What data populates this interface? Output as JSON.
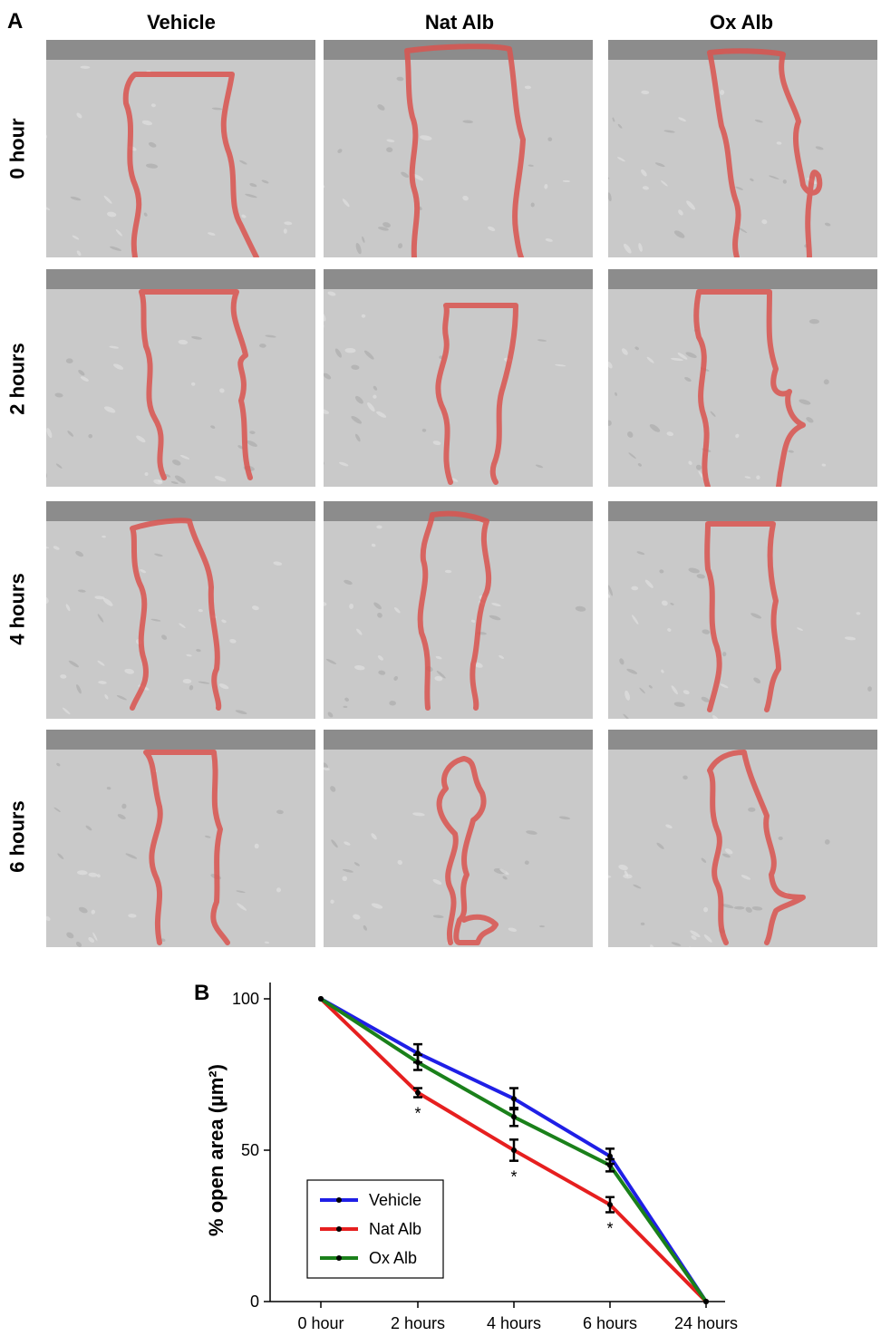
{
  "panel_a": {
    "letter": "A",
    "columns": [
      "Vehicle",
      "Nat Alb",
      "Ox Alb"
    ],
    "rows": [
      "0 hour",
      "2 hours",
      "4 hours",
      "6 hours"
    ]
  },
  "panel_b": {
    "letter": "B"
  },
  "colors": {
    "outline": "#d9534f",
    "vehicle": "#1f1fe6",
    "nat_alb": "#e61f1f",
    "ox_alb": "#1a801a"
  },
  "chart_data": {
    "type": "line",
    "ylabel": "% open area (µm²)",
    "categories": [
      "0 hour",
      "2 hours",
      "4 hours",
      "6 hours",
      "24 hours"
    ],
    "ylim": [
      0,
      100
    ],
    "yticks": [
      0,
      50,
      100
    ],
    "series": [
      {
        "name": "Vehicle",
        "color": "#1f1fe6",
        "values": [
          100,
          82,
          67,
          48,
          0
        ],
        "errors": [
          0,
          3,
          3.5,
          2.5,
          0
        ]
      },
      {
        "name": "Nat Alb",
        "color": "#e61f1f",
        "values": [
          100,
          69,
          50,
          32,
          0
        ],
        "errors": [
          0,
          1.5,
          3.5,
          2.5,
          0
        ]
      },
      {
        "name": "Ox Alb",
        "color": "#1a801a",
        "values": [
          100,
          79,
          61,
          45,
          0
        ],
        "errors": [
          0,
          2.5,
          3,
          2,
          0
        ]
      }
    ],
    "significance": [
      {
        "category": "2 hours",
        "label": "*"
      },
      {
        "category": "4 hours",
        "label": "*"
      },
      {
        "category": "6 hours",
        "label": "*"
      }
    ],
    "legend_position": "bottom-left"
  }
}
